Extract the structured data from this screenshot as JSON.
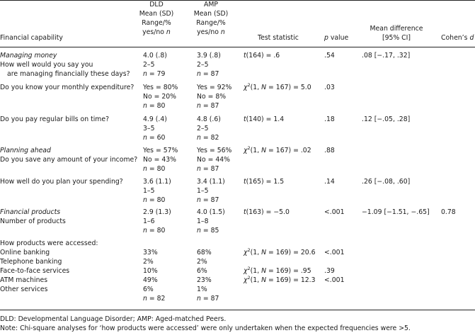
{
  "header": {
    "col_label": "Financial capability",
    "dld": [
      "DLD",
      "Mean (SD)",
      "Range/%",
      "yes/no",
      "n"
    ],
    "amp": [
      "AMP",
      "Mean (SD)",
      "Range/%",
      "yes/no",
      "n"
    ],
    "test_stat": "Test statistic",
    "p": "p",
    "p_suffix": " value",
    "mean_diff": [
      "Mean difference",
      "[95% CI]"
    ],
    "cohen": "Cohen’s ",
    "cohen_d": "d"
  },
  "rows": {
    "managing_money": {
      "label_it": "Managing money",
      "label": [
        "How well would you say you",
        "are managing financially these days?"
      ],
      "dld": [
        "4.0 (.8)",
        "2–5",
        "n",
        " = 79"
      ],
      "amp": [
        "3.9 (.8)",
        "2–5",
        "n",
        " = 87"
      ],
      "stat": [
        "t",
        "(164) = .6"
      ],
      "p": ".54",
      "diff": ".08 [−.17, .32]"
    },
    "monthly_expenditure": {
      "label": "Do you know your monthly expenditure?",
      "dld": [
        "Yes = 80%",
        "No = 20%",
        "n",
        " = 80"
      ],
      "amp": [
        "Yes = 92%",
        "No = 8%",
        "n",
        " = 87"
      ],
      "stat": [
        "χ",
        "2",
        "(1, ",
        "N",
        " = 167) = 5.0"
      ],
      "p": ".03"
    },
    "regular_bills": {
      "label": "Do you pay regular bills on time?",
      "dld": [
        "4.9 (.4)",
        "3–5",
        "n",
        " = 60"
      ],
      "amp": [
        "4.8 (.6)",
        "2–5",
        "n",
        " = 82"
      ],
      "stat": [
        "t",
        "(140) = 1.4"
      ],
      "p": ".18",
      "diff": ".12 [−.05, .28]"
    },
    "planning_ahead": {
      "label_it": "Planning ahead",
      "label": "Do you save any amount of your income?",
      "dld": [
        "Yes = 57%",
        "No = 43%",
        "n",
        " = 80"
      ],
      "amp": [
        "Yes = 56%",
        "No = 44%",
        "n",
        " = 87"
      ],
      "stat": [
        "χ",
        "2",
        "(1, ",
        "N",
        " = 167) = .02"
      ],
      "p": ".88"
    },
    "plan_spending": {
      "label": "How well do you plan your spending?",
      "dld": [
        "3.6 (1.1)",
        "1–5",
        "n",
        " = 80"
      ],
      "amp": [
        "3.4 (1.1)",
        "1–5",
        "n",
        " = 87"
      ],
      "stat": [
        "t",
        "(165) = 1.5"
      ],
      "p": ".14",
      "diff": ".26 [−.08, .60]"
    },
    "financial_products": {
      "label_it": "Financial products",
      "label": "Number of products",
      "dld": [
        "2.9 (1.3)",
        "1–6",
        "n",
        " = 80"
      ],
      "amp": [
        "4.0 (1.5)",
        "1–8",
        "n",
        " = 85"
      ],
      "stat": [
        "t",
        "(163) = −5.0"
      ],
      "p": "<.001",
      "diff": "−1.09 [−1.51, −.65]",
      "cohen": "0.78"
    },
    "products_accessed": {
      "label": "How products were accessed:",
      "items": [
        {
          "label": "Online banking",
          "dld": "33%",
          "amp": "68%",
          "stat_tail": " = 169) = 20.6",
          "p": "<.001"
        },
        {
          "label": "Telephone banking",
          "dld": "2%",
          "amp": "2%"
        },
        {
          "label": "Face-to-face services",
          "dld": "10%",
          "amp": "6%",
          "stat_tail": " = 169) = .95",
          "p": ".39"
        },
        {
          "label": "ATM machines",
          "dld": "49%",
          "amp": "23%",
          "stat_tail": " = 169) = 12.3",
          "p": "<.001"
        },
        {
          "label": "Other services",
          "dld": "6%",
          "amp": "1%"
        }
      ],
      "stat_parts": [
        "χ",
        "2",
        "(1, ",
        "N"
      ],
      "dld_n": [
        "n",
        " = 82"
      ],
      "amp_n": [
        "n",
        " = 87"
      ]
    }
  },
  "notes": {
    "abbrev": "DLD: Developmental Language Disorder; AMP: Aged-matched Peers.",
    "note": "Note: Chi-square analyses for ‘how products were accessed’ were only undertaken when the expected frequencies were >5."
  }
}
